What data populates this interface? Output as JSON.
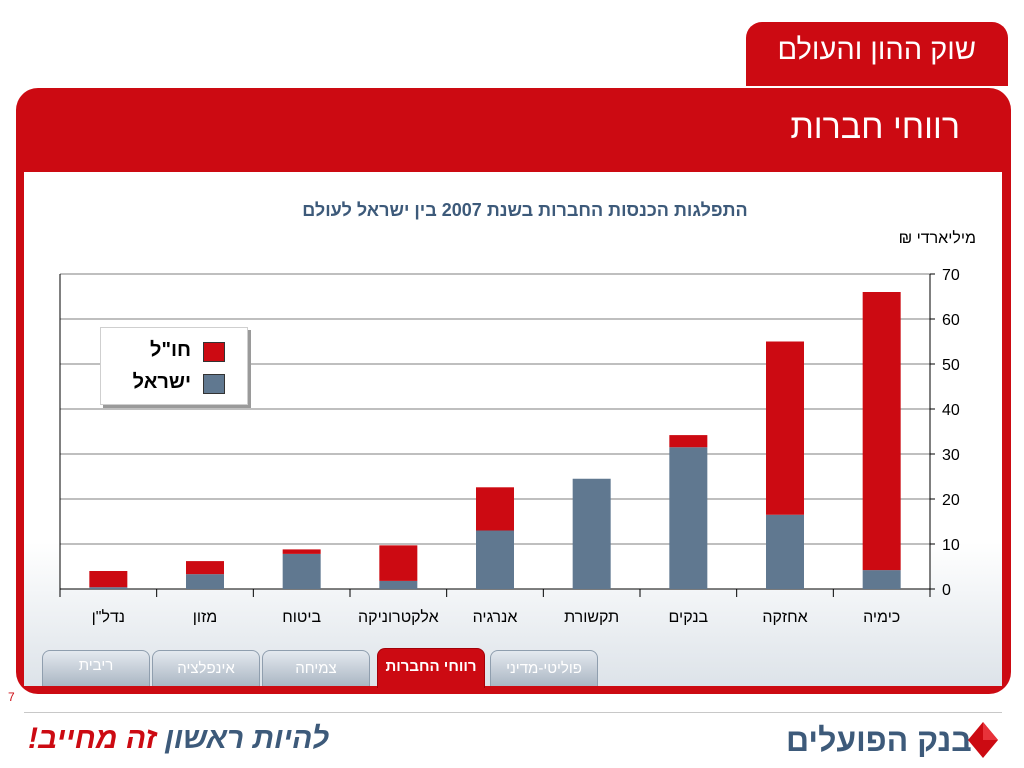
{
  "header": {
    "section_title": "שוק ההון והעולם",
    "slide_title": "רווחי חברות"
  },
  "chart_data": {
    "type": "bar",
    "stacked": true,
    "title": "התפלגות הכנסות החברות בשנת 2007 בין ישראל לעולם",
    "ylabel": "מיליארדי ₪",
    "ylim": [
      0,
      70
    ],
    "yticks": [
      0,
      10,
      20,
      30,
      40,
      50,
      60,
      70
    ],
    "categories": [
      "כימיה",
      "אחזקה",
      "בנקים",
      "תקשורת",
      "אנרגיה",
      "אלקטרוניקה",
      "ביטוח",
      "מזון",
      "נדל\"ן"
    ],
    "series": [
      {
        "name": "ישראל",
        "values": [
          4.2,
          16.5,
          31.5,
          24.5,
          13.0,
          1.8,
          7.8,
          3.3,
          0.4
        ],
        "color": "#607890"
      },
      {
        "name": "חו\"ל",
        "values": [
          61.8,
          38.5,
          2.7,
          0,
          9.6,
          7.9,
          1.0,
          2.9,
          3.6
        ],
        "color": "#cc0a12"
      }
    ],
    "legend_position": "top-left",
    "grid": true
  },
  "legend": {
    "items": [
      {
        "label": "חו\"ל",
        "color": "#cc0a12"
      },
      {
        "label": "ישראל",
        "color": "#607890"
      }
    ]
  },
  "nav": {
    "tabs": [
      {
        "label": "פוליטי-מדיני"
      },
      {
        "label": "רווחי החברות"
      },
      {
        "label": "צמיחה"
      },
      {
        "label": "אינפלציה"
      },
      {
        "label": "ריבית"
      }
    ]
  },
  "footer": {
    "page_number": "7",
    "slogan_part1": "להיות ראשון ",
    "slogan_part2": "זה מחייב!",
    "bank_name": "בנק הפועלים"
  },
  "colors": {
    "brand_red": "#cc0a12",
    "israel_bar": "#607890",
    "tab_gray": "#aab6c3"
  }
}
